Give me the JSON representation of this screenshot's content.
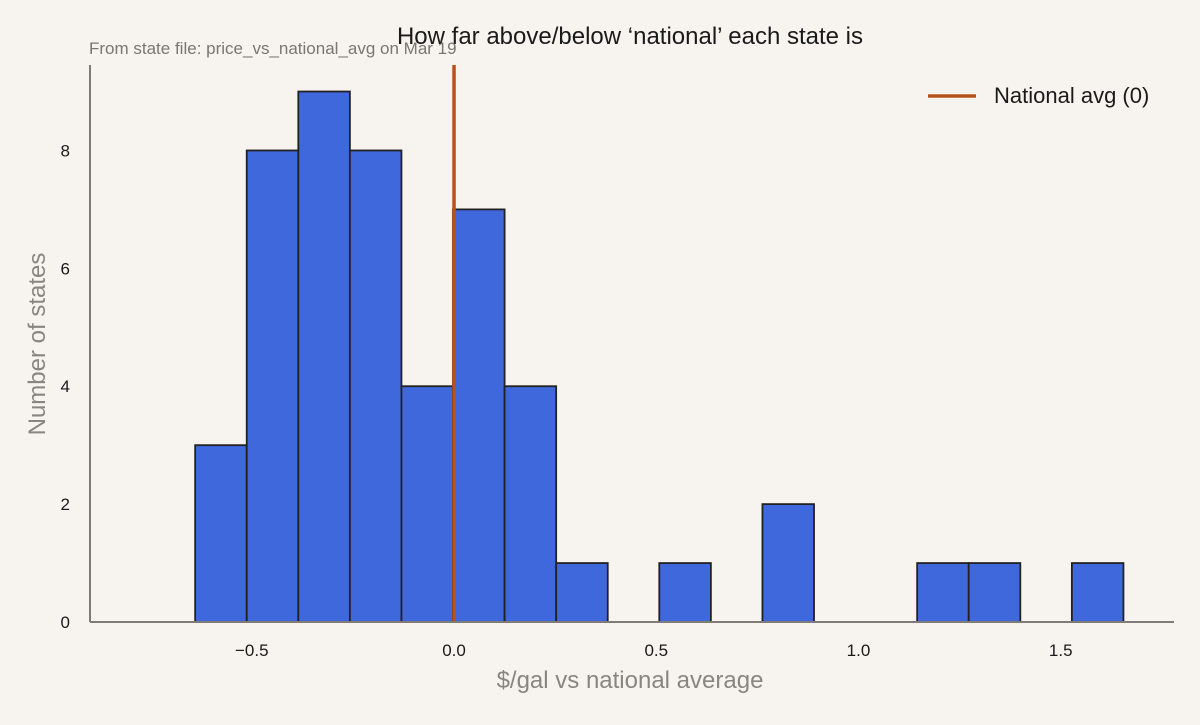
{
  "chart_data": {
    "type": "bar",
    "subtype": "histogram",
    "title": "How far above/below ‘national’ each state is",
    "subtitle": "From state file: price_vs_national_avg on Mar 19",
    "xlabel": "$/gal vs national average",
    "ylabel": "Number of states",
    "xlim": [
      -0.9,
      1.78
    ],
    "ylim": [
      0,
      9.45
    ],
    "xticks": [
      -0.5,
      0.0,
      0.5,
      1.0,
      1.5
    ],
    "xtick_labels": [
      "−0.5",
      "0.0",
      "0.5",
      "1.0",
      "1.5"
    ],
    "yticks": [
      0,
      2,
      4,
      6,
      8
    ],
    "ytick_labels": [
      "0",
      "2",
      "4",
      "6",
      "8"
    ],
    "bin_start": -0.64,
    "bin_width": 0.1275,
    "counts": [
      3,
      8,
      9,
      8,
      4,
      7,
      4,
      1,
      0,
      1,
      0,
      2,
      0,
      0,
      1,
      1,
      0,
      1
    ],
    "reference_line": {
      "x": 0,
      "label": "National avg (0)"
    },
    "legend": {
      "position": "top-right",
      "entries": [
        "National avg (0)"
      ]
    },
    "grid": false,
    "colors": {
      "bar_fill": "#3f68dc",
      "bar_edge": "#222222",
      "reference_line": "#b5531b",
      "axis": "#7f7b77",
      "background": "#f7f3ee"
    }
  }
}
